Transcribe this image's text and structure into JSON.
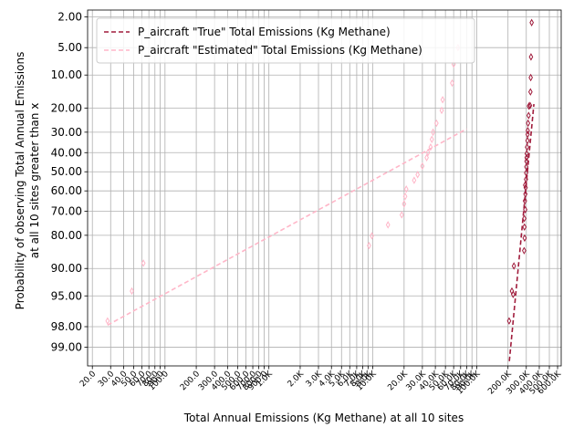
{
  "chart_data": {
    "type": "scatter",
    "title": "",
    "xlabel": "Total Annual Emissions (Kg Methane) at all 10 sites",
    "ylabel_lines": [
      "Probability of observing Total Annual Emissions",
      "at all 10 sites greater than x"
    ],
    "x_scale": "log",
    "y_scale": "probability",
    "xlim": [
      18,
      650000
    ],
    "ylim": [
      99.5,
      1.6
    ],
    "grid": true,
    "legend": "top-left",
    "x_ticks": [
      {
        "v": 20,
        "label": "20.0"
      },
      {
        "v": 30,
        "label": "30.0"
      },
      {
        "v": 40,
        "label": "40.0"
      },
      {
        "v": 50,
        "label": "50.0"
      },
      {
        "v": 60,
        "label": "60.0"
      },
      {
        "v": 70,
        "label": "70.0"
      },
      {
        "v": 80,
        "label": "80.0"
      },
      {
        "v": 90,
        "label": "90.0"
      },
      {
        "v": 100,
        "label": "100.0"
      },
      {
        "v": 200,
        "label": "200.0"
      },
      {
        "v": 300,
        "label": "300.0"
      },
      {
        "v": 400,
        "label": "400.0"
      },
      {
        "v": 500,
        "label": "500.0"
      },
      {
        "v": 600,
        "label": "600.0"
      },
      {
        "v": 700,
        "label": "700.0"
      },
      {
        "v": 800,
        "label": "800.0"
      },
      {
        "v": 900,
        "label": "900.0"
      },
      {
        "v": 1000,
        "label": "1.0K"
      },
      {
        "v": 2000,
        "label": "2.0K"
      },
      {
        "v": 3000,
        "label": "3.0K"
      },
      {
        "v": 4000,
        "label": "4.0K"
      },
      {
        "v": 5000,
        "label": "5.0K"
      },
      {
        "v": 6000,
        "label": "6.0K"
      },
      {
        "v": 7000,
        "label": "7.0K"
      },
      {
        "v": 8000,
        "label": "8.0K"
      },
      {
        "v": 9000,
        "label": "9.0K"
      },
      {
        "v": 10000,
        "label": "10.0K"
      },
      {
        "v": 20000,
        "label": "20.0K"
      },
      {
        "v": 30000,
        "label": "30.0K"
      },
      {
        "v": 40000,
        "label": "40.0K"
      },
      {
        "v": 50000,
        "label": "50.0K"
      },
      {
        "v": 60000,
        "label": "60.0K"
      },
      {
        "v": 70000,
        "label": "70.0K"
      },
      {
        "v": 80000,
        "label": "80.0K"
      },
      {
        "v": 90000,
        "label": "90.0K"
      },
      {
        "v": 100000,
        "label": "100.0K"
      },
      {
        "v": 200000,
        "label": "200.0K"
      },
      {
        "v": 300000,
        "label": "300.0K"
      },
      {
        "v": 400000,
        "label": "400.0K"
      },
      {
        "v": 500000,
        "label": "500.0K"
      },
      {
        "v": 600000,
        "label": "600.0K"
      }
    ],
    "y_ticks": [
      {
        "v": 2,
        "label": "2.00"
      },
      {
        "v": 5,
        "label": "5.00"
      },
      {
        "v": 10,
        "label": "10.00"
      },
      {
        "v": 20,
        "label": "20.00"
      },
      {
        "v": 30,
        "label": "30.00"
      },
      {
        "v": 40,
        "label": "40.00"
      },
      {
        "v": 50,
        "label": "50.00"
      },
      {
        "v": 60,
        "label": "60.00"
      },
      {
        "v": 70,
        "label": "70.00"
      },
      {
        "v": 80,
        "label": "80.00"
      },
      {
        "v": 90,
        "label": "90.00"
      },
      {
        "v": 95,
        "label": "95.00"
      },
      {
        "v": 98,
        "label": "98.00"
      },
      {
        "v": 99,
        "label": "99.00"
      }
    ],
    "series": [
      {
        "name": "P_aircraft \"True\" Total Emissions (Kg Methane)",
        "color": "#a01c3c",
        "fit_line": {
          "x": [
            206000,
            355000
          ],
          "y": [
            99.4,
            18.5
          ]
        },
        "points": [
          {
            "x": 205000,
            "y": 97.6
          },
          {
            "x": 218000,
            "y": 94.3
          },
          {
            "x": 224000,
            "y": 94.8
          },
          {
            "x": 228000,
            "y": 89.4
          },
          {
            "x": 286000,
            "y": 85.2
          },
          {
            "x": 289000,
            "y": 81.0
          },
          {
            "x": 288000,
            "y": 76.8
          },
          {
            "x": 287000,
            "y": 73.2
          },
          {
            "x": 293000,
            "y": 69.2
          },
          {
            "x": 291000,
            "y": 65.0
          },
          {
            "x": 294000,
            "y": 61.6
          },
          {
            "x": 296000,
            "y": 58.3
          },
          {
            "x": 292000,
            "y": 57.0
          },
          {
            "x": 298000,
            "y": 54.0
          },
          {
            "x": 299000,
            "y": 50.6
          },
          {
            "x": 300000,
            "y": 47.4
          },
          {
            "x": 301000,
            "y": 44.5
          },
          {
            "x": 302000,
            "y": 42.6
          },
          {
            "x": 303000,
            "y": 40.5
          },
          {
            "x": 305000,
            "y": 37.2
          },
          {
            "x": 308000,
            "y": 34.0
          },
          {
            "x": 309000,
            "y": 31.0
          },
          {
            "x": 310000,
            "y": 29.3
          },
          {
            "x": 312000,
            "y": 26.0
          },
          {
            "x": 316000,
            "y": 22.8
          },
          {
            "x": 318000,
            "y": 19.2
          },
          {
            "x": 326000,
            "y": 19.0
          },
          {
            "x": 329000,
            "y": 14.5
          },
          {
            "x": 331000,
            "y": 10.6
          },
          {
            "x": 333000,
            "y": 6.4
          },
          {
            "x": 338000,
            "y": 2.4
          }
        ]
      },
      {
        "name": "P_aircraft \"Estimated\" Total Emissions (Kg Methane)",
        "color": "#ffb6c8",
        "fit_line": {
          "x": [
            28,
            80000
          ],
          "y": [
            97.9,
            28.5
          ]
        },
        "points": [
          {
            "x": 28,
            "y": 97.6
          },
          {
            "x": 48,
            "y": 94.3
          },
          {
            "x": 62,
            "y": 88.7
          },
          {
            "x": 9200,
            "y": 83.6
          },
          {
            "x": 9800,
            "y": 80.2
          },
          {
            "x": 14000,
            "y": 75.9
          },
          {
            "x": 19000,
            "y": 71.6
          },
          {
            "x": 20000,
            "y": 66.5
          },
          {
            "x": 20500,
            "y": 62.8
          },
          {
            "x": 21000,
            "y": 59.1
          },
          {
            "x": 25000,
            "y": 54.5
          },
          {
            "x": 27000,
            "y": 51.5
          },
          {
            "x": 30000,
            "y": 47.0
          },
          {
            "x": 33000,
            "y": 42.6
          },
          {
            "x": 34000,
            "y": 39.9
          },
          {
            "x": 36000,
            "y": 37.2
          },
          {
            "x": 37000,
            "y": 33.4
          },
          {
            "x": 38000,
            "y": 30.0
          },
          {
            "x": 41000,
            "y": 26.0
          },
          {
            "x": 46000,
            "y": 20.8
          },
          {
            "x": 47000,
            "y": 17.0
          },
          {
            "x": 58000,
            "y": 12.0
          },
          {
            "x": 60000,
            "y": 7.7
          },
          {
            "x": 66000,
            "y": 5.0
          }
        ]
      }
    ]
  }
}
